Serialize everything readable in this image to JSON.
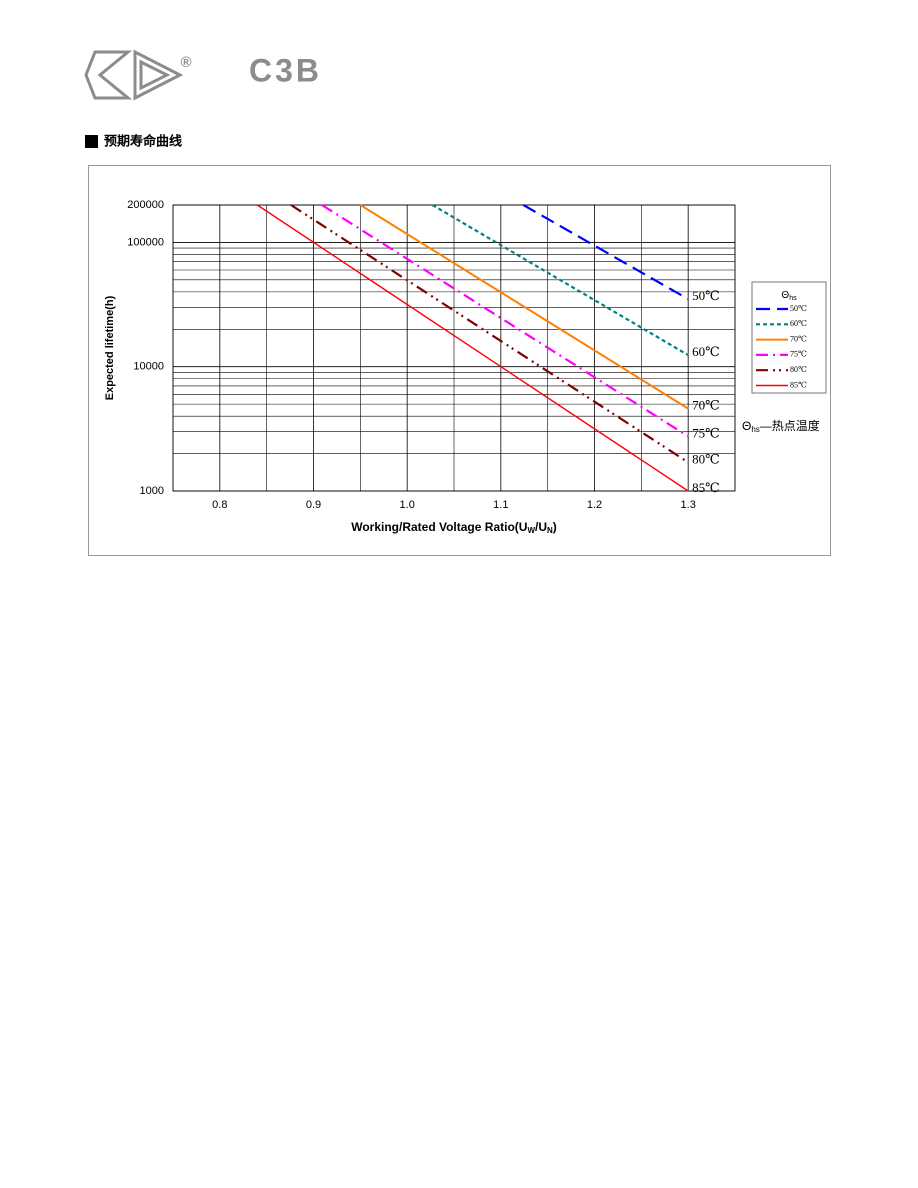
{
  "header": {
    "logo_mark": "®",
    "title": "C3B"
  },
  "section": {
    "title": "预期寿命曲线"
  },
  "chart_data": {
    "type": "line",
    "ylabel": "Expected lifetime(h)",
    "xlabel": [
      "Working/Rated Voltage Ratio(U",
      "W",
      "/U",
      "N",
      ")"
    ],
    "xlim": [
      0.75,
      1.35
    ],
    "xticks": [
      0.8,
      0.9,
      {
        "value": 1,
        "label": "1.0"
      },
      1.1,
      1.2,
      1.3
    ],
    "x_minor_ticks": [
      0.75,
      0.85,
      0.95,
      1.05,
      1.15,
      1.25,
      1.35
    ],
    "ylim": [
      1000,
      200000
    ],
    "log_y": true,
    "yticks": [
      1000,
      10000,
      100000,
      200000
    ],
    "y_minor_ticks": [
      2000,
      3000,
      4000,
      5000,
      6000,
      7000,
      8000,
      9000,
      20000,
      30000,
      40000,
      50000,
      60000,
      70000,
      80000,
      90000
    ],
    "grid": true,
    "legend_title": {
      "symbol": "Θ",
      "subscript": "hs"
    },
    "note": {
      "symbol": "Θ",
      "subscript": "hs",
      "text": "—热点温度"
    },
    "series": [
      {
        "name": "50℃",
        "color": "#0000ff",
        "line_style": "long-dash",
        "x": [
          1.124,
          1.3
        ],
        "values": [
          200000,
          35000
        ]
      },
      {
        "name": "60℃",
        "color": "#008080",
        "line_style": "short-dash",
        "x": [
          1.027,
          1.3
        ],
        "values": [
          200000,
          12400
        ]
      },
      {
        "name": "70℃",
        "color": "#ff8000",
        "line_style": "solid",
        "x": [
          0.95,
          1.3
        ],
        "values": [
          200000,
          4600
        ]
      },
      {
        "name": "75℃",
        "color": "#ff00ff",
        "line_style": "dash-dot",
        "x": [
          0.909,
          1.3
        ],
        "values": [
          200000,
          2750
        ]
      },
      {
        "name": "80℃",
        "color": "#800000",
        "line_style": "dash-dot-dot",
        "x": [
          0.876,
          1.3
        ],
        "values": [
          200000,
          1700
        ]
      },
      {
        "name": "85℃",
        "color": "#ff0000",
        "line_style": "thin",
        "x": [
          0.84,
          1.3
        ],
        "values": [
          200000,
          1000
        ]
      }
    ]
  }
}
